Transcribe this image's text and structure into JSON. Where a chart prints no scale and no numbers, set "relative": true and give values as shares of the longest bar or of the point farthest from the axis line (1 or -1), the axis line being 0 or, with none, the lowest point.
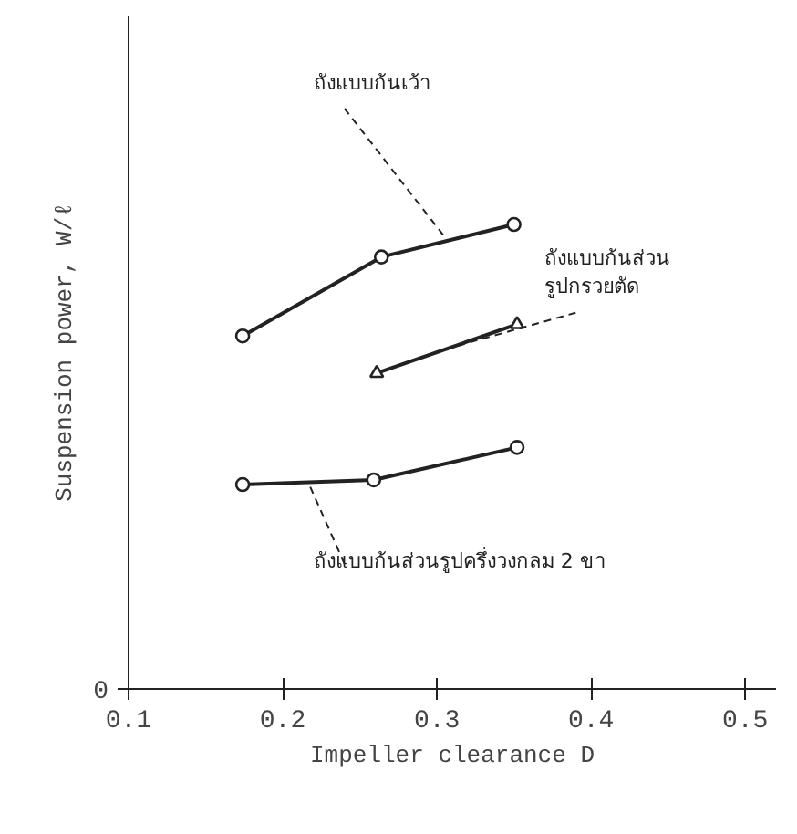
{
  "chart_data": {
    "type": "line",
    "relative": true,
    "xlabel": "Impeller clearance D",
    "ylabel": "Suspension power, W/ℓ",
    "xlim": [
      0.1,
      0.52
    ],
    "xticks": [
      0.1,
      0.2,
      0.3,
      0.4,
      0.5
    ],
    "grid": false,
    "annotations": [
      "0"
    ],
    "series": [
      {
        "name": "ถังแบบก้นเว้า",
        "color": "#222222",
        "marker": "circle",
        "x": [
          0.174,
          0.264,
          0.35
        ],
        "values": [
          0.76,
          0.93,
          1
        ]
      },
      {
        "name": "ถังแบบก้นส่วน\nรูปกรวยตัด",
        "color": "#222222",
        "marker": "triangle",
        "x": [
          0.261,
          0.352
        ],
        "values": [
          0.68,
          0.785
        ]
      },
      {
        "name": "ถังแบบก้นส่วนรูปครึ่งวงกลม 2 ขา",
        "color": "#222222",
        "marker": "circle",
        "x": [
          0.174,
          0.259,
          0.352
        ],
        "values": [
          0.44,
          0.45,
          0.52
        ]
      }
    ]
  }
}
